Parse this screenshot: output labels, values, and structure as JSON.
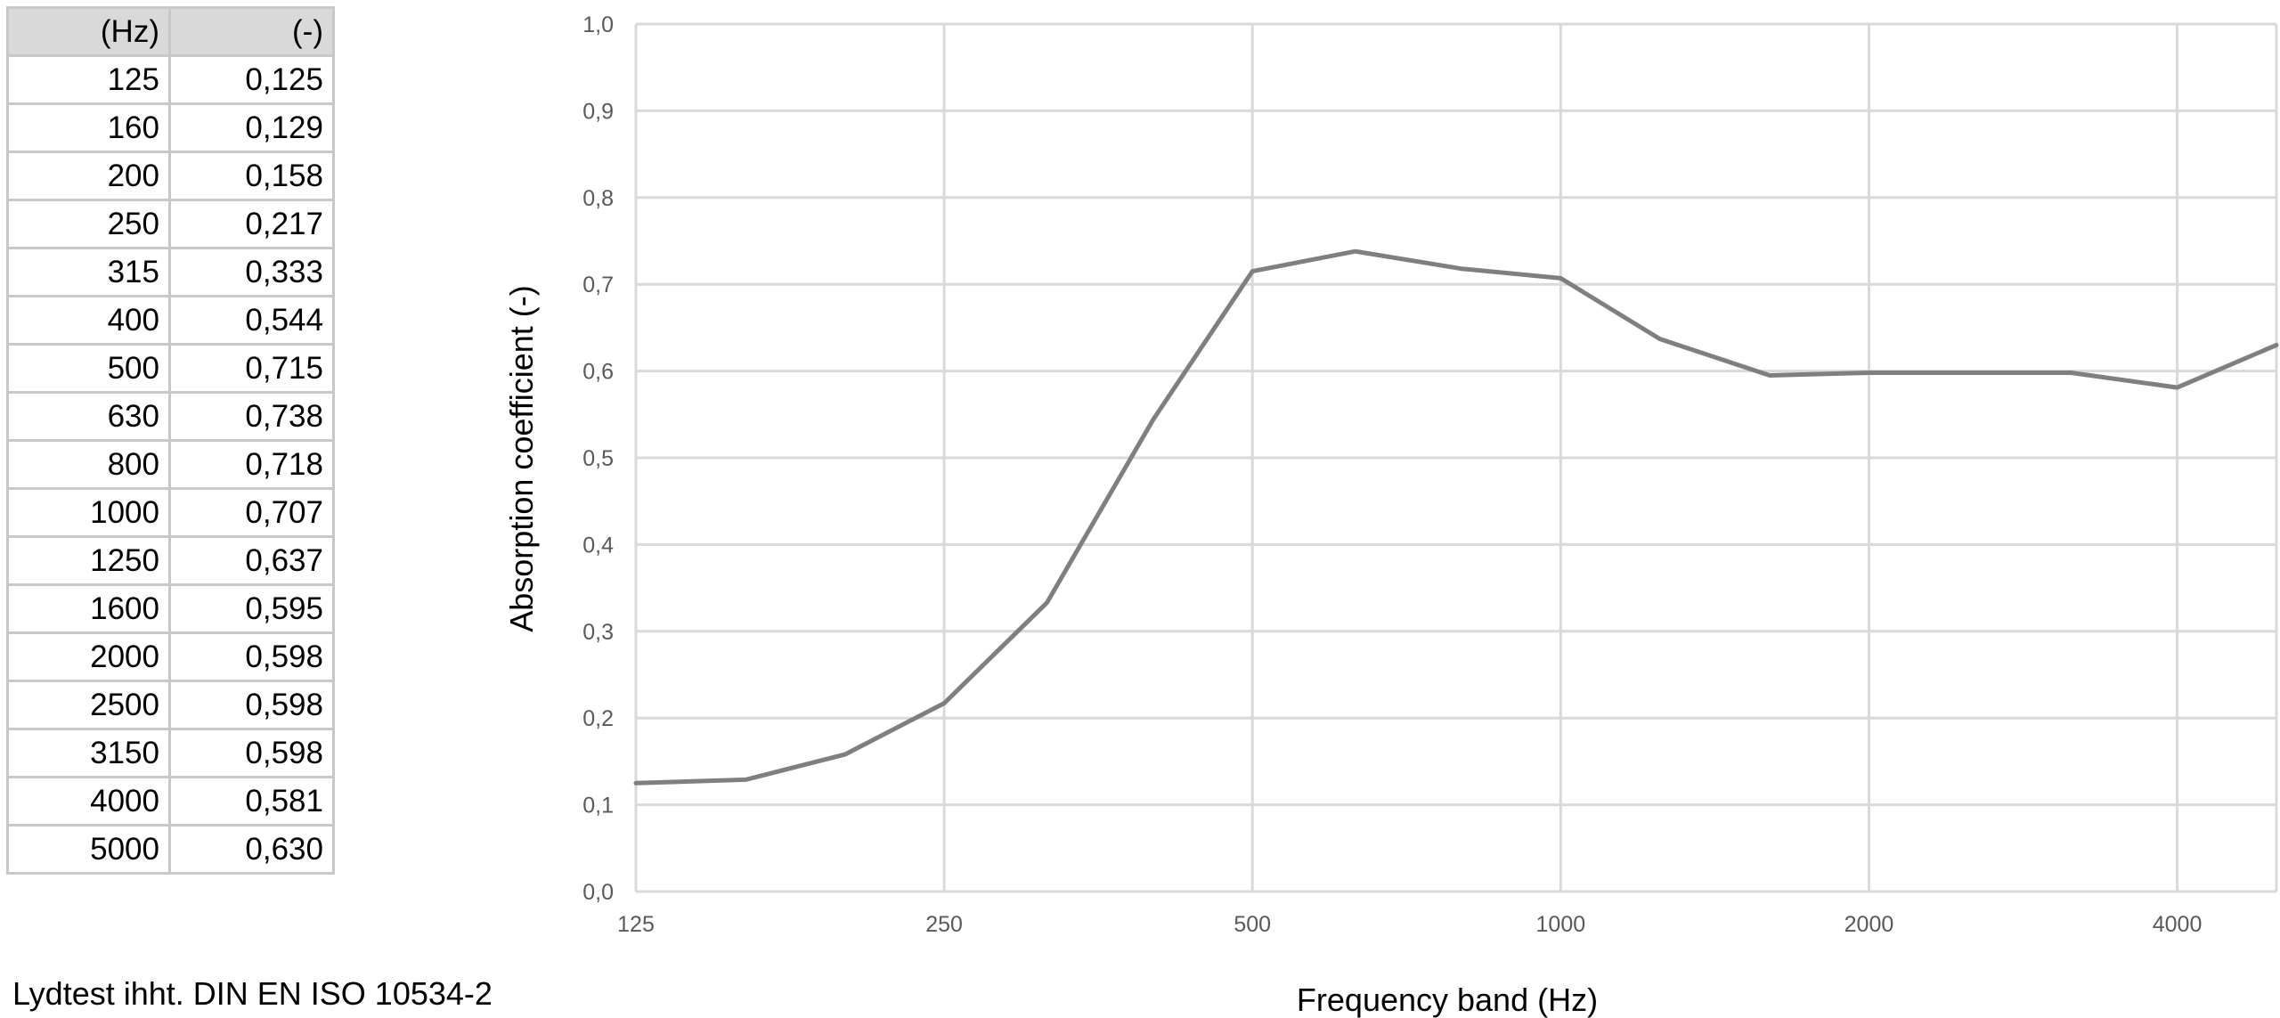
{
  "table": {
    "header": [
      "(Hz)",
      "(-)"
    ],
    "rows": [
      [
        "125",
        "0,125"
      ],
      [
        "160",
        "0,129"
      ],
      [
        "200",
        "0,158"
      ],
      [
        "250",
        "0,217"
      ],
      [
        "315",
        "0,333"
      ],
      [
        "400",
        "0,544"
      ],
      [
        "500",
        "0,715"
      ],
      [
        "630",
        "0,738"
      ],
      [
        "800",
        "0,718"
      ],
      [
        "1000",
        "0,707"
      ],
      [
        "1250",
        "0,637"
      ],
      [
        "1600",
        "0,595"
      ],
      [
        "2000",
        "0,598"
      ],
      [
        "2500",
        "0,598"
      ],
      [
        "3150",
        "0,598"
      ],
      [
        "4000",
        "0,581"
      ],
      [
        "5000",
        "0,630"
      ]
    ]
  },
  "note": "Lydtest ihht. DIN EN ISO 10534-2",
  "chart_data": {
    "type": "line",
    "xlabel": "Frequency band (Hz)",
    "ylabel": "Absorption coefficient (-)",
    "x_scale": "log",
    "xlim": [
      125,
      5000
    ],
    "ylim": [
      0,
      1
    ],
    "grid": true,
    "legend": "none",
    "series_color": "#7f7f7f",
    "grid_color": "#d9d9d9",
    "x_ticks": [
      125,
      250,
      500,
      1000,
      2000,
      4000
    ],
    "x_tick_labels": [
      "125",
      "250",
      "500",
      "1000",
      "2000",
      "4000"
    ],
    "y_ticks": [
      0,
      0.1,
      0.2,
      0.3,
      0.4,
      0.5,
      0.6,
      0.7,
      0.8,
      0.9,
      1.0
    ],
    "y_tick_labels": [
      "0,0",
      "0,1",
      "0,2",
      "0,3",
      "0,4",
      "0,5",
      "0,6",
      "0,7",
      "0,8",
      "0,9",
      "1,0"
    ],
    "x": [
      125,
      160,
      200,
      250,
      315,
      400,
      500,
      630,
      800,
      1000,
      1250,
      1600,
      2000,
      2500,
      3150,
      4000,
      5000
    ],
    "series": [
      {
        "values": [
          0.125,
          0.129,
          0.158,
          0.217,
          0.333,
          0.544,
          0.715,
          0.738,
          0.718,
          0.707,
          0.637,
          0.595,
          0.598,
          0.598,
          0.598,
          0.581,
          0.63
        ]
      }
    ]
  }
}
